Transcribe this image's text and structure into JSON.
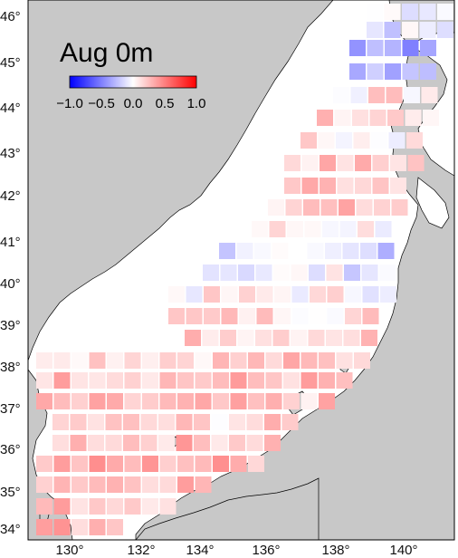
{
  "map": {
    "title": "Aug 0m",
    "lon_ticks": [
      "130°",
      "132°",
      "134°",
      "136°",
      "138°",
      "140°"
    ],
    "lat_ticks": [
      "34°",
      "35°",
      "36°",
      "37°",
      "38°",
      "39°",
      "40°",
      "41°",
      "42°",
      "43°",
      "44°",
      "45°",
      "46°"
    ],
    "colorbar": {
      "labels": [
        "−1.0",
        "−0.5",
        "0.0",
        "0.5",
        "1.0"
      ],
      "range": [
        -1.0,
        1.0
      ],
      "low_color": "#0000ff",
      "mid_color": "#ffffff",
      "high_color": "#ff0000"
    },
    "colors": {
      "land": "#c8c8c8",
      "sea": "#ffffff",
      "coast": "#000000"
    }
  }
}
